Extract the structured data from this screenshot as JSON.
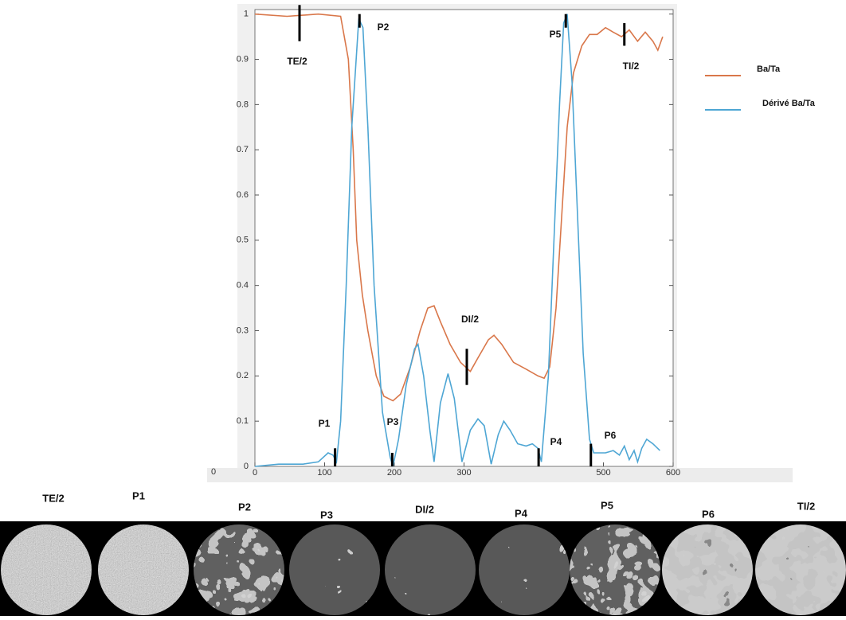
{
  "chart_data": {
    "type": "line",
    "xlim": [
      0,
      600
    ],
    "ylim": [
      0,
      1.01
    ],
    "xticks": [
      0,
      100,
      200,
      300,
      500,
      600
    ],
    "yticks": [
      0,
      0.1,
      0.2,
      0.3,
      0.4,
      0.5,
      0.6,
      0.7,
      0.8,
      0.9,
      1
    ],
    "stray_label": "0",
    "series": [
      {
        "name": "Ba/Ta",
        "color": "#d9774a",
        "x": [
          0,
          46,
          91,
          123,
          134,
          141,
          146,
          154,
          162,
          174,
          185,
          198,
          209,
          223,
          237,
          248,
          257,
          266,
          280,
          295,
          309,
          320,
          335,
          343,
          354,
          371,
          389,
          406,
          415,
          423,
          432,
          440,
          448,
          457,
          469,
          480,
          491,
          503,
          514,
          526,
          537,
          549,
          560,
          571,
          578,
          585
        ],
        "values": [
          1.0,
          0.995,
          1.0,
          0.995,
          0.9,
          0.7,
          0.5,
          0.38,
          0.3,
          0.2,
          0.155,
          0.145,
          0.16,
          0.22,
          0.3,
          0.35,
          0.355,
          0.32,
          0.27,
          0.23,
          0.21,
          0.24,
          0.28,
          0.29,
          0.27,
          0.23,
          0.215,
          0.2,
          0.195,
          0.22,
          0.35,
          0.55,
          0.75,
          0.87,
          0.93,
          0.955,
          0.955,
          0.97,
          0.96,
          0.95,
          0.965,
          0.94,
          0.96,
          0.94,
          0.92,
          0.95
        ]
      },
      {
        "name": "Dérivé Ba/Ta",
        "color": "#4ea6d4",
        "x": [
          0,
          34,
          69,
          91,
          105,
          112,
          117,
          123,
          131,
          139,
          149,
          155,
          162,
          171,
          183,
          194,
          198,
          206,
          217,
          229,
          234,
          242,
          251,
          257,
          266,
          277,
          286,
          297,
          309,
          320,
          329,
          339,
          349,
          357,
          366,
          377,
          389,
          398,
          406,
          411,
          421,
          429,
          437,
          443,
          448,
          455,
          463,
          471,
          480,
          486,
          494,
          503,
          514,
          523,
          530,
          537,
          544,
          549,
          555,
          562,
          571,
          581
        ],
        "values": [
          0,
          0.005,
          0.005,
          0.01,
          0.03,
          0.025,
          0.01,
          0.1,
          0.4,
          0.75,
          0.99,
          0.97,
          0.75,
          0.4,
          0.12,
          0.02,
          0.0,
          0.06,
          0.18,
          0.26,
          0.27,
          0.2,
          0.08,
          0.01,
          0.14,
          0.205,
          0.15,
          0.01,
          0.08,
          0.105,
          0.09,
          0.005,
          0.07,
          0.1,
          0.08,
          0.05,
          0.045,
          0.05,
          0.04,
          0.01,
          0.2,
          0.5,
          0.8,
          0.98,
          1.0,
          0.85,
          0.55,
          0.25,
          0.06,
          0.03,
          0.03,
          0.03,
          0.035,
          0.025,
          0.045,
          0.015,
          0.035,
          0.01,
          0.04,
          0.06,
          0.05,
          0.035
        ]
      }
    ],
    "annotations": [
      {
        "text": "TE/2",
        "x": 64,
        "y": [
          0.94,
          1.02
        ]
      },
      {
        "text": "P2",
        "x": 150,
        "y": [
          0.97,
          1.0
        ]
      },
      {
        "text": "P1",
        "x": 115,
        "y": [
          0,
          0.04
        ]
      },
      {
        "text": "P3",
        "x": 197,
        "y": [
          0,
          0.03
        ]
      },
      {
        "text": "DI/2",
        "x": 304,
        "y": [
          0.18,
          0.26
        ]
      },
      {
        "text": "P4",
        "x": 407,
        "y": [
          0,
          0.04
        ]
      },
      {
        "text": "P5",
        "x": 446,
        "y": [
          0.97,
          1.0
        ]
      },
      {
        "text": "P6",
        "x": 482,
        "y": [
          0,
          0.05
        ]
      },
      {
        "text": "TI/2",
        "x": 530,
        "y": [
          0.93,
          0.98
        ]
      }
    ]
  },
  "image_strip": {
    "labels": [
      "TE/2",
      "P1",
      "P2",
      "P3",
      "DI/2",
      "P4",
      "P5",
      "P6",
      "TI/2"
    ]
  }
}
